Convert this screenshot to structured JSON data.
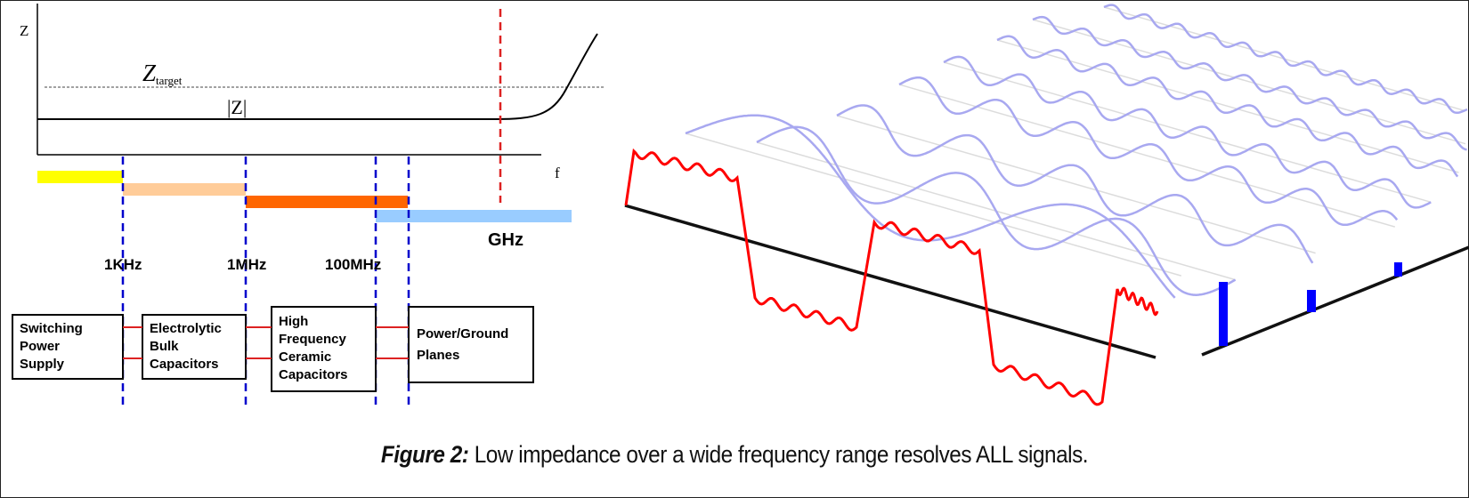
{
  "impedance_plot": {
    "y_axis_label": "Z",
    "x_axis_label": "f",
    "target_label_main": "Z",
    "target_label_sub": "target",
    "curve_label": "|Z|"
  },
  "frequency_markers": [
    "1KHz",
    "1MHz",
    "100MHz",
    "GHz"
  ],
  "components": [
    {
      "line1": "Switching",
      "line2": "Power",
      "line3": "Supply",
      "line4": ""
    },
    {
      "line1": "Electrolytic",
      "line2": "Bulk",
      "line3": "Capacitors",
      "line4": ""
    },
    {
      "line1": "High",
      "line2": "Frequency",
      "line3": "Ceramic",
      "line4": "Capacitors"
    },
    {
      "line1": "Power/Ground",
      "line2": "Planes",
      "line3": "",
      "line4": ""
    }
  ],
  "band_colors": [
    "#ffff00",
    "#ffcc99",
    "#ff6600",
    "#99ccff"
  ],
  "colors": {
    "square_wave": "#ff0000",
    "harmonics": "#a8a8f0",
    "spectrum": "#0000ff",
    "cutoff": "#dd2222",
    "boundary": "#0000cc"
  },
  "caption": {
    "prefix": "Figure 2:",
    "text": " Low impedance over a wide frequency range resolves ALL signals."
  }
}
